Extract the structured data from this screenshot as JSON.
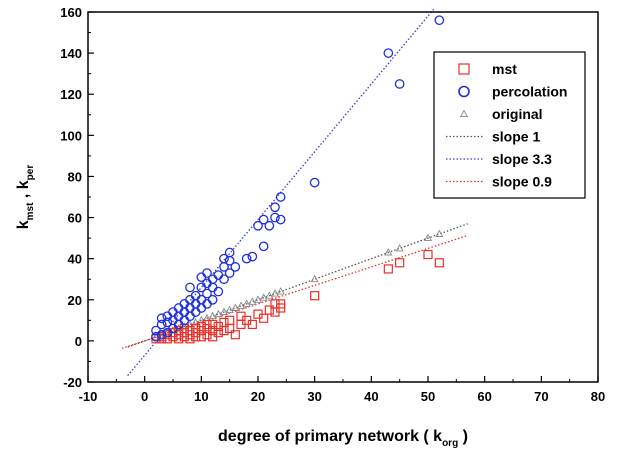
{
  "chart_data": {
    "type": "scatter",
    "xlabel": {
      "prefix": "degree of primary network ( k",
      "sub": "org",
      "suffix": " )"
    },
    "ylabel": {
      "k1": "k",
      "sub1": "mst",
      "sep": " , ",
      "k2": "k",
      "sub2": "per"
    },
    "xlim": [
      -10,
      80
    ],
    "ylim": [
      -20,
      160
    ],
    "xticks": [
      -10,
      0,
      10,
      20,
      30,
      40,
      50,
      60,
      70,
      80
    ],
    "yticks": [
      -20,
      0,
      20,
      40,
      60,
      80,
      100,
      120,
      140,
      160
    ],
    "colors": {
      "mst": "#e8302a",
      "percolation": "#1f2fd8",
      "original": "#888888",
      "slope1": "#555555",
      "slope33": "#3a3ad8",
      "slope09": "#e8302a"
    },
    "legend": {
      "placement": "top-right",
      "items": [
        {
          "label": "mst",
          "marker": "square",
          "color": "#e8302a"
        },
        {
          "label": "percolation",
          "marker": "circle",
          "color": "#1f2fd8"
        },
        {
          "label": "original",
          "marker": "triangle",
          "color": "#888888"
        },
        {
          "label": "slope 1",
          "marker": "line",
          "color": "#555555"
        },
        {
          "label": "slope 3.3",
          "marker": "line",
          "color": "#3a3ad8"
        },
        {
          "label": "slope 0.9",
          "marker": "line",
          "color": "#e8302a"
        }
      ]
    },
    "series": [
      {
        "name": "mst",
        "marker": "square",
        "points": [
          [
            2,
            1
          ],
          [
            3,
            1
          ],
          [
            3,
            2
          ],
          [
            4,
            1
          ],
          [
            4,
            3
          ],
          [
            5,
            2
          ],
          [
            5,
            4
          ],
          [
            6,
            1
          ],
          [
            6,
            3
          ],
          [
            6,
            5
          ],
          [
            7,
            2
          ],
          [
            7,
            4
          ],
          [
            7,
            6
          ],
          [
            8,
            1
          ],
          [
            8,
            3
          ],
          [
            8,
            5
          ],
          [
            9,
            2
          ],
          [
            9,
            4
          ],
          [
            9,
            6
          ],
          [
            10,
            2
          ],
          [
            10,
            5
          ],
          [
            10,
            7
          ],
          [
            11,
            3
          ],
          [
            11,
            6
          ],
          [
            11,
            8
          ],
          [
            12,
            2
          ],
          [
            12,
            5
          ],
          [
            12,
            8
          ],
          [
            13,
            4
          ],
          [
            13,
            7
          ],
          [
            14,
            5
          ],
          [
            14,
            9
          ],
          [
            15,
            6
          ],
          [
            15,
            10
          ],
          [
            16,
            3
          ],
          [
            17,
            8
          ],
          [
            17,
            12
          ],
          [
            18,
            10
          ],
          [
            19,
            8
          ],
          [
            20,
            13
          ],
          [
            21,
            11
          ],
          [
            22,
            15
          ],
          [
            23,
            18
          ],
          [
            23,
            14
          ],
          [
            24,
            16
          ],
          [
            24,
            18
          ],
          [
            30,
            22
          ],
          [
            43,
            35
          ],
          [
            45,
            38
          ],
          [
            50,
            42
          ],
          [
            52,
            38
          ]
        ]
      },
      {
        "name": "percolation",
        "marker": "circle",
        "points": [
          [
            2,
            2
          ],
          [
            2,
            5
          ],
          [
            3,
            3
          ],
          [
            3,
            8
          ],
          [
            3,
            11
          ],
          [
            4,
            4
          ],
          [
            4,
            9
          ],
          [
            4,
            12
          ],
          [
            5,
            6
          ],
          [
            5,
            10
          ],
          [
            5,
            14
          ],
          [
            6,
            8
          ],
          [
            6,
            12
          ],
          [
            6,
            16
          ],
          [
            7,
            10
          ],
          [
            7,
            14
          ],
          [
            7,
            18
          ],
          [
            8,
            12
          ],
          [
            8,
            16
          ],
          [
            8,
            20
          ],
          [
            8,
            26
          ],
          [
            9,
            14
          ],
          [
            9,
            18
          ],
          [
            9,
            22
          ],
          [
            10,
            16
          ],
          [
            10,
            20
          ],
          [
            10,
            26
          ],
          [
            10,
            31
          ],
          [
            11,
            18
          ],
          [
            11,
            23
          ],
          [
            11,
            28
          ],
          [
            11,
            33
          ],
          [
            12,
            20
          ],
          [
            12,
            26
          ],
          [
            12,
            30
          ],
          [
            13,
            24
          ],
          [
            13,
            32
          ],
          [
            14,
            30
          ],
          [
            14,
            36
          ],
          [
            14,
            40
          ],
          [
            15,
            33
          ],
          [
            15,
            39
          ],
          [
            15,
            43
          ],
          [
            16,
            36
          ],
          [
            18,
            40
          ],
          [
            19,
            41
          ],
          [
            20,
            56
          ],
          [
            21,
            46
          ],
          [
            21,
            59
          ],
          [
            22,
            56
          ],
          [
            23,
            60
          ],
          [
            23,
            65
          ],
          [
            24,
            59
          ],
          [
            24,
            70
          ],
          [
            30,
            77
          ],
          [
            43,
            140
          ],
          [
            45,
            125
          ],
          [
            52,
            156
          ]
        ]
      },
      {
        "name": "original",
        "marker": "triangle",
        "points": [
          [
            2,
            2
          ],
          [
            3,
            3
          ],
          [
            4,
            4
          ],
          [
            5,
            5
          ],
          [
            6,
            6
          ],
          [
            7,
            7
          ],
          [
            8,
            8
          ],
          [
            9,
            9
          ],
          [
            10,
            10
          ],
          [
            11,
            11
          ],
          [
            12,
            12
          ],
          [
            13,
            13
          ],
          [
            14,
            14
          ],
          [
            15,
            15
          ],
          [
            16,
            16
          ],
          [
            17,
            17
          ],
          [
            18,
            18
          ],
          [
            19,
            19
          ],
          [
            20,
            20
          ],
          [
            21,
            21
          ],
          [
            22,
            22
          ],
          [
            23,
            23
          ],
          [
            24,
            24
          ],
          [
            30,
            30
          ],
          [
            43,
            43
          ],
          [
            45,
            45
          ],
          [
            50,
            50
          ],
          [
            52,
            52
          ]
        ]
      }
    ],
    "lines": [
      {
        "name": "slope 1",
        "slope": 1.0,
        "intercept": 0,
        "x_range": [
          -3,
          57
        ],
        "color": "#555555"
      },
      {
        "name": "slope 3.3",
        "slope": 3.3,
        "intercept": -7,
        "x_range": [
          -3,
          51
        ],
        "color": "#3a3ad8"
      },
      {
        "name": "slope 0.9",
        "slope": 0.9,
        "intercept": 0,
        "x_range": [
          -4,
          57
        ],
        "color": "#e8302a"
      }
    ]
  }
}
